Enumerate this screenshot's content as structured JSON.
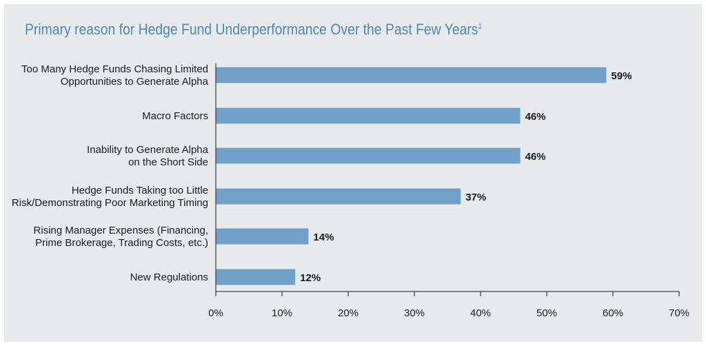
{
  "chart_data": {
    "type": "bar",
    "orientation": "horizontal",
    "title": "Primary reason for Hedge Fund Underperformance Over the Past Few Years",
    "title_footnote": "1",
    "categories": [
      [
        "Too Many Hedge Funds Chasing Limited",
        "Opportunities to Generate Alpha"
      ],
      [
        "Macro Factors"
      ],
      [
        "Inability to Generate Alpha",
        "on the Short Side"
      ],
      [
        "Hedge Funds Taking too Little",
        "Risk/Demonstrating Poor Marketing Timing"
      ],
      [
        "Rising Manager Expenses (Financing,",
        "Prime Brokerage, Trading Costs, etc.)"
      ],
      [
        "New Regulations"
      ]
    ],
    "values": [
      59,
      46,
      46,
      37,
      14,
      12
    ],
    "value_labels": [
      "59%",
      "46%",
      "46%",
      "37%",
      "14%",
      "12%"
    ],
    "xlim": [
      0,
      70
    ],
    "xticks": [
      0,
      10,
      20,
      30,
      40,
      50,
      60,
      70
    ],
    "xtick_labels": [
      "0%",
      "10%",
      "20%",
      "30%",
      "40%",
      "50%",
      "60%",
      "70%"
    ],
    "bar_color": "#71a1c9",
    "title_color": "#4d86b8",
    "background": "#e8e9ea",
    "grid": false,
    "legend": "none"
  }
}
